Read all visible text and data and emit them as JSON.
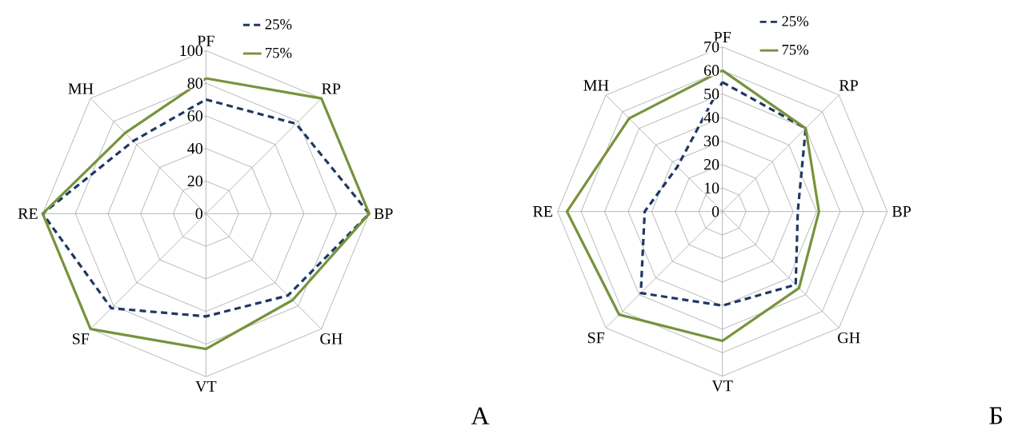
{
  "chart_data": [
    {
      "type": "radar",
      "categories": [
        "PF",
        "RP",
        "BP",
        "GH",
        "VT",
        "SF",
        "RE",
        "MH"
      ],
      "ylim": [
        0,
        100
      ],
      "yticks": [
        0,
        20,
        40,
        60,
        80,
        100
      ],
      "grid": true,
      "legend": "top right",
      "annotations": [
        "A"
      ],
      "series": [
        {
          "name": "25%",
          "color": "#1f3864",
          "line_style": "dashed",
          "values": [
            70,
            78,
            100,
            71,
            63,
            82,
            100,
            63
          ]
        },
        {
          "name": "75%",
          "color": "#77933c",
          "line_style": "solid",
          "values": [
            83,
            100,
            100,
            75,
            83,
            100,
            100,
            70
          ]
        }
      ]
    },
    {
      "type": "radar",
      "categories": [
        "PF",
        "RP",
        "BP",
        "GH",
        "VT",
        "SF",
        "RE",
        "MH"
      ],
      "ylim": [
        0,
        70
      ],
      "yticks": [
        0,
        10,
        20,
        30,
        40,
        50,
        60,
        70
      ],
      "grid": true,
      "legend": "top right",
      "annotations": [
        "Б"
      ],
      "series": [
        {
          "name": "25%",
          "color": "#1f3864",
          "line_style": "dashed",
          "values": [
            55,
            50,
            32,
            44,
            40,
            49,
            33,
            27
          ]
        },
        {
          "name": "75%",
          "color": "#77933c",
          "line_style": "solid",
          "values": [
            60,
            50,
            41,
            46,
            55,
            62,
            66,
            56
          ]
        }
      ]
    }
  ]
}
